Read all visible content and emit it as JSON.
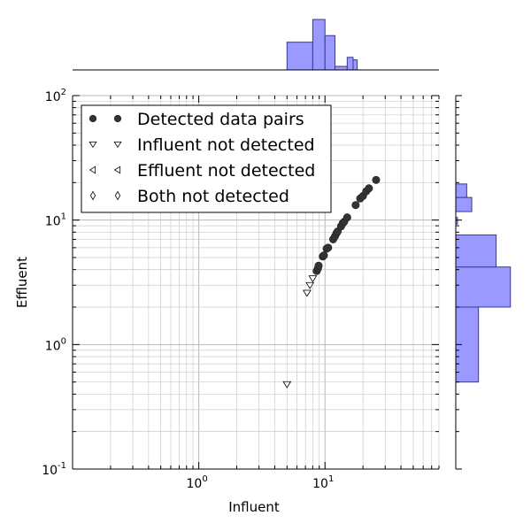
{
  "chart_data": {
    "type": "scatter",
    "xlabel": "Influent",
    "ylabel": "Effluent",
    "x_scale": "log",
    "y_scale": "log",
    "xlim": [
      0.1,
      80
    ],
    "ylim": [
      0.1,
      100
    ],
    "x_ticks": [
      {
        "base": "10",
        "exp": "0",
        "value": 1
      },
      {
        "base": "10",
        "exp": "1",
        "value": 10
      }
    ],
    "y_ticks": [
      {
        "base": "10",
        "exp": "-1",
        "value": 0.1
      },
      {
        "base": "10",
        "exp": "0",
        "value": 1
      },
      {
        "base": "10",
        "exp": "1",
        "value": 10
      },
      {
        "base": "10",
        "exp": "2",
        "value": 100
      }
    ],
    "grid": true,
    "legend_position": "top-left",
    "legend": [
      {
        "symbol": "●",
        "label": "Detected data pairs"
      },
      {
        "symbol": "▽",
        "label": "Influent not detected"
      },
      {
        "symbol": "◁",
        "label": "Effluent not detected"
      },
      {
        "symbol": "◊",
        "label": "Both not detected"
      }
    ],
    "series": [
      {
        "name": "Detected data pairs",
        "marker": "circle",
        "points": [
          [
            8.6,
            3.9
          ],
          [
            8.8,
            4.1
          ],
          [
            8.9,
            4.3
          ],
          [
            9.6,
            5.1
          ],
          [
            9.8,
            5.2
          ],
          [
            10.3,
            5.9
          ],
          [
            10.6,
            6.0
          ],
          [
            11.6,
            7.0
          ],
          [
            12.0,
            7.4
          ],
          [
            12.3,
            7.8
          ],
          [
            12.6,
            8.1
          ],
          [
            13.4,
            8.9
          ],
          [
            13.8,
            9.4
          ],
          [
            14.2,
            9.7
          ],
          [
            15.0,
            10.5
          ],
          [
            17.5,
            13.2
          ],
          [
            19.0,
            14.9
          ],
          [
            20.0,
            15.6
          ],
          [
            21.2,
            17.0
          ],
          [
            22.3,
            18.0
          ],
          [
            25.4,
            21.0
          ]
        ]
      },
      {
        "name": "Influent not detected",
        "marker": "triangle-down",
        "points": [
          [
            5.0,
            0.48
          ],
          [
            7.2,
            2.6
          ],
          [
            7.6,
            3.0
          ],
          [
            8.0,
            3.4
          ]
        ]
      },
      {
        "name": "Effluent not detected",
        "marker": "triangle-left",
        "points": []
      },
      {
        "name": "Both not detected",
        "marker": "diamond",
        "points": []
      }
    ],
    "top_histogram": {
      "bins": [
        [
          5.0,
          8.0,
          0.55
        ],
        [
          8.0,
          10.0,
          1.0
        ],
        [
          10.0,
          12.0,
          0.68
        ],
        [
          12.0,
          15.0,
          0.07
        ],
        [
          15.0,
          16.7,
          0.25
        ],
        [
          16.7,
          18.0,
          0.2
        ]
      ]
    },
    "right_histogram": {
      "bins": [
        [
          0.5,
          2.0,
          1.35
        ],
        [
          2.0,
          4.2,
          3.25
        ],
        [
          4.2,
          7.6,
          2.4
        ],
        [
          9.3,
          10.5,
          0.1
        ],
        [
          11.7,
          15.2,
          0.95
        ],
        [
          15.2,
          19.5,
          0.65
        ]
      ]
    },
    "colors": {
      "marker_fill": "#333333",
      "hist_fill": "#9999ff",
      "hist_edge": "#3a3a8a",
      "grid": "#cccccc"
    }
  }
}
